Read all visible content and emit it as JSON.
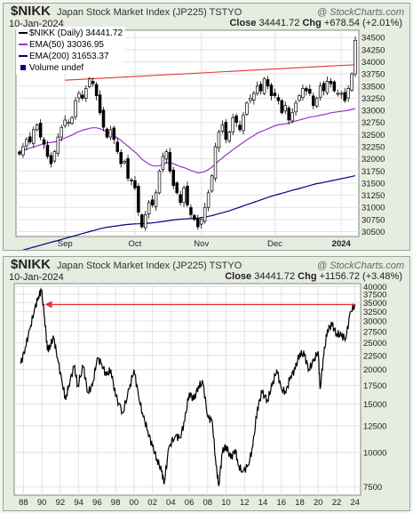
{
  "chart_data": [
    {
      "type": "candlestick",
      "ticker": "$NIKK",
      "name": "Japan Stock Market Index (JP225)",
      "exchange": "TSTYO",
      "watermark": "@ StockCharts.com",
      "date": "10-Jan-2024",
      "close_label": "Close",
      "close": "34441.72",
      "chg_label": "Chg",
      "chg": "+678.54 (+2.01%)",
      "legend": [
        {
          "label": "$NIKK (Daily) 34441.72",
          "color": "#000000"
        },
        {
          "label": "EMA(50) 33036.95",
          "color": "#9933cc"
        },
        {
          "label": "EMA(200) 31653.37",
          "color": "#000080"
        },
        {
          "label": "Volume undef",
          "color": "#000080"
        }
      ],
      "ylim": [
        30400,
        34650
      ],
      "yticks": [
        30500,
        30750,
        31000,
        31250,
        31500,
        31750,
        32000,
        32250,
        32500,
        32750,
        33000,
        33250,
        33500,
        33750,
        34000,
        34250,
        34500
      ],
      "xticks": [
        {
          "label": "Sep",
          "i": 13
        },
        {
          "label": "Oct",
          "i": 33
        },
        {
          "label": "Nov",
          "i": 52
        },
        {
          "label": "Dec",
          "i": 73
        },
        {
          "label": "2024",
          "i": 92
        }
      ],
      "n_bars": 97,
      "closes": [
        32100,
        32250,
        32400,
        32350,
        32600,
        32700,
        32450,
        32300,
        32050,
        31900,
        32150,
        32450,
        32650,
        32800,
        32750,
        32850,
        33200,
        33350,
        33250,
        33450,
        33650,
        33550,
        33300,
        32950,
        32650,
        32450,
        32600,
        32400,
        32150,
        31900,
        31950,
        31600,
        31550,
        31400,
        30900,
        30600,
        30850,
        31100,
        31050,
        31300,
        31750,
        32050,
        32150,
        31750,
        31450,
        31300,
        31100,
        31400,
        31050,
        30850,
        30750,
        30600,
        30750,
        31000,
        31300,
        31650,
        32250,
        32550,
        32700,
        32400,
        32550,
        32850,
        32750,
        32600,
        32900,
        33150,
        33250,
        33350,
        33500,
        33400,
        33650,
        33500,
        33300,
        33300,
        33200,
        32950,
        33100,
        32800,
        32950,
        33150,
        33300,
        33450,
        33400,
        33350,
        33100,
        33250,
        33500,
        33400,
        33600,
        33550,
        33400,
        33350,
        33350,
        33200,
        33450,
        33750,
        34442
      ],
      "ema50": [
        32150,
        32170,
        32200,
        32220,
        32240,
        32270,
        32290,
        32320,
        32330,
        32340,
        32350,
        32370,
        32400,
        32430,
        32460,
        32490,
        32530,
        32560,
        32590,
        32610,
        32630,
        32640,
        32640,
        32620,
        32590,
        32560,
        32520,
        32480,
        32430,
        32380,
        32320,
        32260,
        32200,
        32140,
        32070,
        31990,
        31940,
        31890,
        31860,
        31850,
        31860,
        31880,
        31920,
        31920,
        31900,
        31870,
        31840,
        31820,
        31790,
        31760,
        31740,
        31710,
        31720,
        31740,
        31780,
        31830,
        31890,
        31960,
        32020,
        32080,
        32130,
        32190,
        32240,
        32290,
        32340,
        32390,
        32440,
        32480,
        32530,
        32560,
        32590,
        32620,
        32650,
        32680,
        32700,
        32710,
        32720,
        32740,
        32760,
        32780,
        32800,
        32820,
        32840,
        32860,
        32870,
        32880,
        32900,
        32910,
        32930,
        32950,
        32960,
        32970,
        32980,
        32990,
        33000,
        33020,
        33037
      ],
      "ema200": [
        30100,
        30120,
        30140,
        30160,
        30180,
        30200,
        30220,
        30240,
        30260,
        30280,
        30300,
        30320,
        30340,
        30360,
        30380,
        30400,
        30420,
        30440,
        30460,
        30480,
        30500,
        30520,
        30540,
        30560,
        30575,
        30590,
        30600,
        30610,
        30620,
        30630,
        30640,
        30650,
        30655,
        30660,
        30662,
        30665,
        30670,
        30675,
        30680,
        30690,
        30700,
        30710,
        30720,
        30730,
        30740,
        30750,
        30755,
        30760,
        30765,
        30770,
        30775,
        30780,
        30790,
        30800,
        30815,
        30830,
        30850,
        30870,
        30890,
        30910,
        30930,
        30955,
        30980,
        31005,
        31030,
        31055,
        31080,
        31105,
        31130,
        31155,
        31180,
        31205,
        31230,
        31250,
        31270,
        31290,
        31310,
        31330,
        31350,
        31370,
        31390,
        31410,
        31430,
        31450,
        31470,
        31490,
        31500,
        31515,
        31530,
        31545,
        31560,
        31575,
        31590,
        31605,
        31620,
        31635,
        31653
      ],
      "trendline": {
        "from": {
          "i": 13,
          "y": 33620
        },
        "to": {
          "i": 96,
          "y": 33940
        }
      }
    },
    {
      "type": "line",
      "ticker": "$NIKK",
      "name": "Japan Stock Market Index (JP225)",
      "exchange": "TSTYO",
      "watermark": "@ StockCharts.com",
      "date": "10-Jan-2024",
      "close_label": "Close",
      "close": "34441.72",
      "chg_label": "Chg",
      "chg": "+1156.72 (+3.48%)",
      "yscale": "log",
      "ylim": [
        7000,
        41000
      ],
      "yticks": [
        7500,
        10000,
        12500,
        15000,
        17500,
        20000,
        22500,
        25000,
        27500,
        30000,
        32500,
        35000,
        37500,
        40000
      ],
      "xticks": [
        "88",
        "90",
        "92",
        "94",
        "96",
        "98",
        "00",
        "02",
        "04",
        "06",
        "08",
        "10",
        "12",
        "14",
        "16",
        "18",
        "20",
        "22",
        "24"
      ],
      "x": [
        1987.7,
        1988.2,
        1988.7,
        1989.2,
        1989.6,
        1989.95,
        1990.3,
        1990.6,
        1990.9,
        1991.3,
        1991.7,
        1992.2,
        1992.6,
        1992.9,
        1993.5,
        1993.9,
        1994.5,
        1995.0,
        1995.5,
        1996.0,
        1996.5,
        1997.0,
        1997.5,
        1998.0,
        1998.8,
        1999.5,
        2000.0,
        2000.5,
        2001.0,
        2001.5,
        2002.0,
        2002.5,
        2003.0,
        2003.3,
        2003.8,
        2004.5,
        2005.0,
        2005.5,
        2006.0,
        2006.5,
        2007.0,
        2007.5,
        2008.0,
        2008.5,
        2008.9,
        2009.2,
        2009.6,
        2010.0,
        2010.5,
        2011.0,
        2011.3,
        2011.8,
        2012.4,
        2012.9,
        2013.4,
        2013.9,
        2014.5,
        2015.0,
        2015.5,
        2016.0,
        2016.5,
        2017.0,
        2017.5,
        2018.0,
        2018.5,
        2019.0,
        2019.5,
        2020.0,
        2020.2,
        2020.6,
        2021.0,
        2021.5,
        2022.0,
        2022.5,
        2023.0,
        2023.5,
        2024.03
      ],
      "values": [
        21000,
        24000,
        28000,
        33000,
        36500,
        38900,
        31000,
        23500,
        24500,
        26000,
        22000,
        18000,
        15500,
        17500,
        20500,
        17500,
        20500,
        16500,
        17500,
        22000,
        21000,
        19000,
        20000,
        16000,
        14000,
        17000,
        20000,
        16000,
        13500,
        12000,
        10500,
        9500,
        8500,
        7800,
        10500,
        11500,
        11300,
        13000,
        16500,
        15500,
        17500,
        17800,
        13500,
        13000,
        9000,
        7600,
        10000,
        10600,
        9500,
        10300,
        9000,
        8500,
        9000,
        10500,
        14500,
        16500,
        15500,
        17500,
        20000,
        17000,
        16500,
        19000,
        20000,
        23000,
        22500,
        20000,
        21500,
        23300,
        17000,
        22500,
        28000,
        29000,
        27000,
        26500,
        26000,
        32500,
        34442
      ],
      "arrow": {
        "from_x": 2024.0,
        "to_x": 1989.95,
        "y": 34442
      }
    }
  ]
}
